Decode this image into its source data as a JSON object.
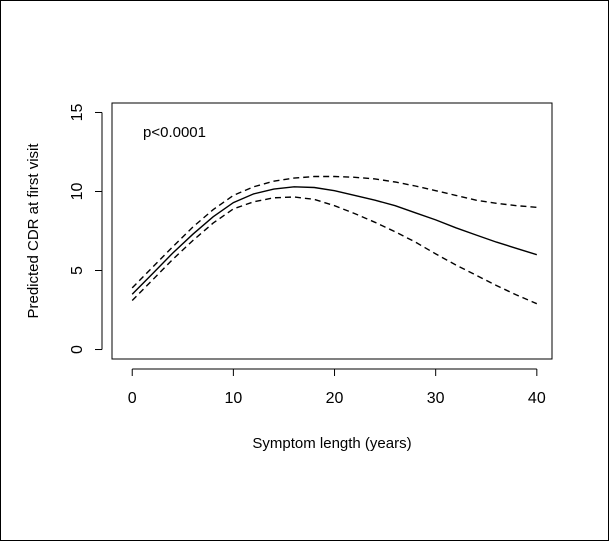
{
  "chart_data": {
    "type": "line",
    "title": "",
    "xlabel": "Symptom length (years)",
    "ylabel": "Predicted CDR at first visit",
    "annotation": "p<0.0001",
    "xlim": [
      -2,
      41.5
    ],
    "ylim": [
      -0.6,
      15.6
    ],
    "x_ticks": [
      0,
      10,
      20,
      30,
      40
    ],
    "y_ticks": [
      0,
      5,
      10,
      15
    ],
    "x_tick_labels": [
      "0",
      "10",
      "20",
      "30",
      "40"
    ],
    "y_tick_labels": [
      "0",
      "5",
      "10",
      "15"
    ],
    "grid": false,
    "series": [
      {
        "role": "estimate",
        "line_style": "solid",
        "color": "#000000",
        "x": [
          0,
          2,
          4,
          6,
          8,
          10,
          12,
          14,
          16,
          18,
          20,
          22,
          24,
          26,
          28,
          30,
          32,
          34,
          36,
          38,
          40
        ],
        "y": [
          3.5,
          4.8,
          6.1,
          7.3,
          8.4,
          9.3,
          9.85,
          10.15,
          10.3,
          10.25,
          10.05,
          9.75,
          9.45,
          9.1,
          8.65,
          8.2,
          7.7,
          7.25,
          6.8,
          6.4,
          6.0
        ]
      },
      {
        "role": "upper confidence bound",
        "line_style": "dashed",
        "color": "#000000",
        "x": [
          0,
          2,
          4,
          6,
          8,
          10,
          12,
          14,
          16,
          18,
          20,
          22,
          24,
          26,
          28,
          30,
          32,
          34,
          36,
          38,
          40
        ],
        "y": [
          3.9,
          5.2,
          6.5,
          7.75,
          8.85,
          9.75,
          10.3,
          10.65,
          10.85,
          10.95,
          10.95,
          10.9,
          10.8,
          10.6,
          10.35,
          10.05,
          9.75,
          9.45,
          9.25,
          9.1,
          9.0
        ]
      },
      {
        "role": "lower confidence bound",
        "line_style": "dashed",
        "color": "#000000",
        "x": [
          0,
          2,
          4,
          6,
          8,
          10,
          12,
          14,
          16,
          18,
          20,
          22,
          24,
          26,
          28,
          30,
          32,
          34,
          36,
          38,
          40
        ],
        "y": [
          3.1,
          4.4,
          5.7,
          6.9,
          8.0,
          8.9,
          9.35,
          9.6,
          9.65,
          9.5,
          9.1,
          8.6,
          8.05,
          7.45,
          6.8,
          6.05,
          5.35,
          4.7,
          4.05,
          3.45,
          2.9
        ]
      }
    ]
  }
}
